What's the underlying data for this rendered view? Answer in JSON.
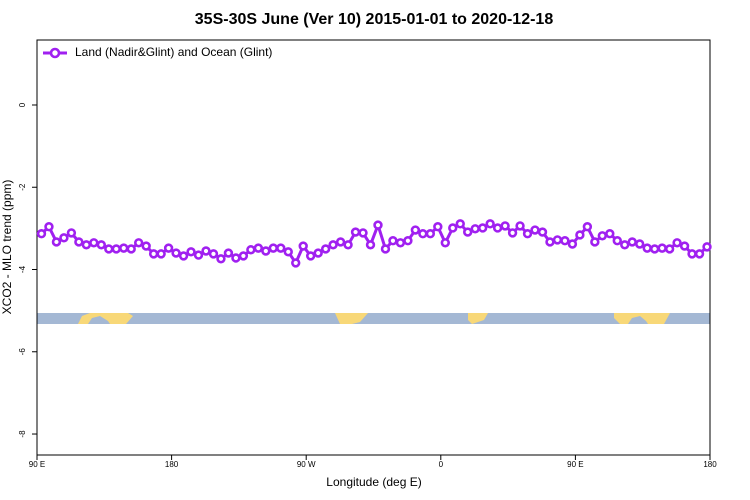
{
  "chart_data": {
    "type": "line",
    "title": "35S-30S June (Ver 10)   2015-01-01 to 2020-12-18",
    "x_label": "Longitude (deg E)",
    "y_label": "XCO2 - MLO trend (ppm)",
    "xlim": [
      90,
      540
    ],
    "ylim": [
      -8.51,
      1.58
    ],
    "xticks": [
      {
        "value": 90,
        "label": "90 E"
      },
      180,
      {
        "value": 270,
        "label": "90 W"
      },
      {
        "value": 360,
        "label": "0"
      },
      {
        "value": 450,
        "label": "90 E"
      },
      {
        "value": 540,
        "label": "180"
      }
    ],
    "yticks": [
      0,
      -2,
      -4,
      -6,
      -8
    ],
    "legend": "top-left",
    "x": [
      93,
      98,
      103,
      108,
      113,
      118,
      123,
      128,
      133,
      138,
      143,
      148,
      153,
      158,
      163,
      168,
      173,
      178,
      183,
      188,
      193,
      198,
      203,
      208,
      213,
      218,
      223,
      228,
      233,
      238,
      243,
      248,
      253,
      258,
      263,
      268,
      273,
      278,
      283,
      288,
      293,
      298,
      303,
      308,
      313,
      318,
      323,
      328,
      333,
      338,
      343,
      348,
      353,
      358,
      363,
      368,
      373,
      378,
      383,
      388,
      393,
      398,
      403,
      408,
      413,
      418,
      423,
      428,
      433,
      438,
      443,
      448,
      453,
      458,
      463,
      468,
      473,
      478,
      483,
      488,
      493,
      498,
      503,
      508,
      513,
      518,
      523,
      528,
      533,
      538
    ],
    "series": [
      {
        "name": "Land (Nadir&Glint) and Ocean (Glint)",
        "color": "#a020f0",
        "values": [
          -3.13,
          -2.96,
          -3.33,
          -3.23,
          -3.11,
          -3.33,
          -3.4,
          -3.35,
          -3.4,
          -3.5,
          -3.5,
          -3.48,
          -3.5,
          -3.35,
          -3.43,
          -3.62,
          -3.62,
          -3.48,
          -3.6,
          -3.67,
          -3.57,
          -3.65,
          -3.55,
          -3.62,
          -3.74,
          -3.6,
          -3.72,
          -3.67,
          -3.52,
          -3.48,
          -3.55,
          -3.48,
          -3.48,
          -3.57,
          -3.84,
          -3.43,
          -3.67,
          -3.6,
          -3.5,
          -3.4,
          -3.33,
          -3.4,
          -3.09,
          -3.11,
          -3.4,
          -2.92,
          -3.5,
          -3.3,
          -3.35,
          -3.3,
          -3.04,
          -3.13,
          -3.13,
          -2.96,
          -3.35,
          -2.99,
          -2.89,
          -3.09,
          -3.01,
          -2.99,
          -2.89,
          -2.99,
          -2.94,
          -3.11,
          -2.94,
          -3.13,
          -3.04,
          -3.09,
          -3.33,
          -3.28,
          -3.3,
          -3.38,
          -3.16,
          -2.96,
          -3.33,
          -3.18,
          -3.13,
          -3.3,
          -3.4,
          -3.33,
          -3.38,
          -3.48,
          -3.5,
          -3.48,
          -3.5,
          -3.35,
          -3.43,
          -3.62,
          -3.62,
          -3.45
        ]
      }
    ]
  }
}
